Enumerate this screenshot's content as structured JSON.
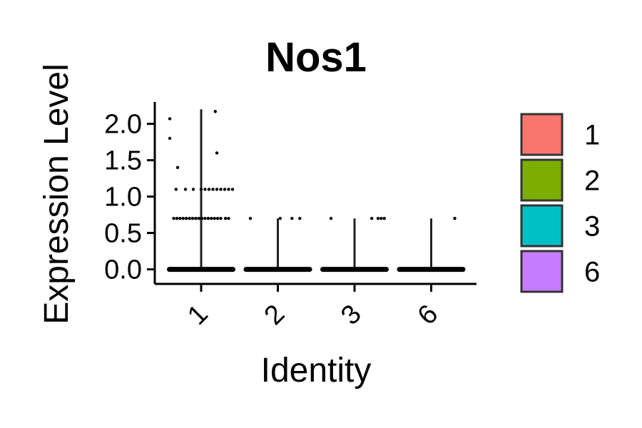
{
  "chart_data": {
    "type": "violin",
    "title": "Nos1",
    "xlabel": "Identity",
    "ylabel": "Expression Level",
    "categories": [
      "1",
      "2",
      "3",
      "6"
    ],
    "ylim": [
      -0.2,
      2.3
    ],
    "yticks": [
      0.0,
      0.5,
      1.0,
      1.5,
      2.0
    ],
    "ytick_labels": [
      "0.0",
      "0.5",
      "1.0",
      "1.5",
      "2.0"
    ],
    "legend_position": "right",
    "legend": [
      {
        "label": "1",
        "color": "#F8766D"
      },
      {
        "label": "2",
        "color": "#7CAE00"
      },
      {
        "label": "3",
        "color": "#00BFC4"
      },
      {
        "label": "6",
        "color": "#C77CFF"
      }
    ],
    "violins": [
      {
        "name": "1",
        "max": 2.2
      },
      {
        "name": "2",
        "max": 0.7
      },
      {
        "name": "3",
        "max": 0.7
      },
      {
        "name": "6",
        "max": 0.7
      }
    ],
    "points": [
      {
        "group": "1",
        "y": 2.07,
        "jitter": -0.4
      },
      {
        "group": "1",
        "y": 1.8,
        "jitter": -0.4
      },
      {
        "group": "1",
        "y": 1.4,
        "jitter": -0.3
      },
      {
        "group": "1",
        "y": 1.1,
        "jitter": -0.32
      },
      {
        "group": "1",
        "y": 1.1,
        "jitter": -0.2
      },
      {
        "group": "1",
        "y": 1.1,
        "jitter": -0.1
      },
      {
        "group": "1",
        "y": 1.1,
        "jitter": 0.0
      },
      {
        "group": "1",
        "y": 1.1,
        "jitter": 0.05
      },
      {
        "group": "1",
        "y": 1.1,
        "jitter": 0.1
      },
      {
        "group": "1",
        "y": 1.1,
        "jitter": 0.15
      },
      {
        "group": "1",
        "y": 1.1,
        "jitter": 0.2
      },
      {
        "group": "1",
        "y": 1.1,
        "jitter": 0.25
      },
      {
        "group": "1",
        "y": 1.1,
        "jitter": 0.3
      },
      {
        "group": "1",
        "y": 1.1,
        "jitter": 0.35
      },
      {
        "group": "1",
        "y": 1.1,
        "jitter": 0.4
      },
      {
        "group": "1",
        "y": 1.6,
        "jitter": 0.2
      },
      {
        "group": "1",
        "y": 2.17,
        "jitter": 0.18
      },
      {
        "group": "1",
        "y": 0.7,
        "jitter": -0.35
      },
      {
        "group": "1",
        "y": 0.7,
        "jitter": -0.31
      },
      {
        "group": "1",
        "y": 0.7,
        "jitter": -0.27
      },
      {
        "group": "1",
        "y": 0.7,
        "jitter": -0.23
      },
      {
        "group": "1",
        "y": 0.7,
        "jitter": -0.19
      },
      {
        "group": "1",
        "y": 0.7,
        "jitter": -0.15
      },
      {
        "group": "1",
        "y": 0.7,
        "jitter": -0.11
      },
      {
        "group": "1",
        "y": 0.7,
        "jitter": -0.07
      },
      {
        "group": "1",
        "y": 0.7,
        "jitter": -0.03
      },
      {
        "group": "1",
        "y": 0.7,
        "jitter": 0.01
      },
      {
        "group": "1",
        "y": 0.7,
        "jitter": 0.05
      },
      {
        "group": "1",
        "y": 0.7,
        "jitter": 0.09
      },
      {
        "group": "1",
        "y": 0.7,
        "jitter": 0.13
      },
      {
        "group": "1",
        "y": 0.7,
        "jitter": 0.17
      },
      {
        "group": "1",
        "y": 0.7,
        "jitter": 0.21
      },
      {
        "group": "1",
        "y": 0.7,
        "jitter": 0.25
      },
      {
        "group": "1",
        "y": 0.7,
        "jitter": 0.31
      },
      {
        "group": "1",
        "y": 0.7,
        "jitter": 0.35
      },
      {
        "group": "2",
        "y": 0.7,
        "jitter": -0.35
      },
      {
        "group": "2",
        "y": 0.7,
        "jitter": 0.03
      },
      {
        "group": "2",
        "y": 0.7,
        "jitter": 0.18
      },
      {
        "group": "2",
        "y": 0.7,
        "jitter": 0.28
      },
      {
        "group": "3",
        "y": 0.7,
        "jitter": -0.3
      },
      {
        "group": "3",
        "y": 0.7,
        "jitter": 0.22
      },
      {
        "group": "3",
        "y": 0.7,
        "jitter": 0.3
      },
      {
        "group": "3",
        "y": 0.7,
        "jitter": 0.34
      },
      {
        "group": "3",
        "y": 0.7,
        "jitter": 0.38
      },
      {
        "group": "6",
        "y": 0.7,
        "jitter": 0.3
      }
    ],
    "zero_band": {
      "y": 0.0,
      "groups": [
        "1",
        "2",
        "3",
        "6"
      ]
    }
  }
}
